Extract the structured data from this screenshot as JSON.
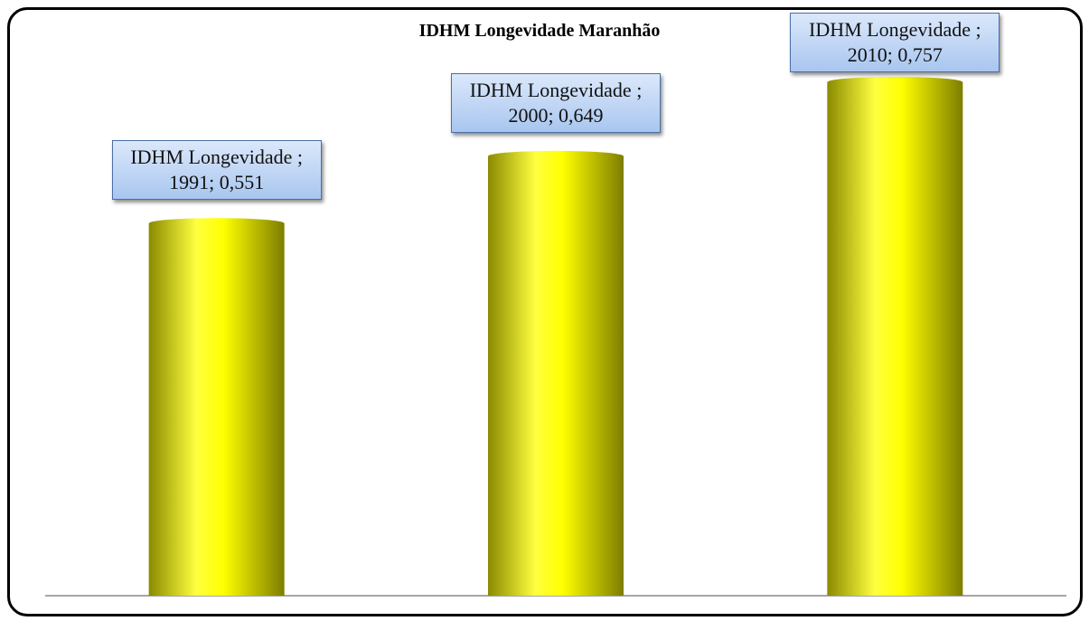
{
  "chart_data": {
    "type": "bar",
    "title": "IDHM Longevidade Maranhão",
    "categories": [
      "1991",
      "2000",
      "2010"
    ],
    "values": [
      0.551,
      0.649,
      0.757
    ],
    "value_labels": [
      "IDHM Longevidade ; 1991; 0,551",
      "IDHM Longevidade ; 2000; 0,649",
      "IDHM Longevidade ; 2010; 0,757"
    ],
    "color": "#ffff00"
  }
}
